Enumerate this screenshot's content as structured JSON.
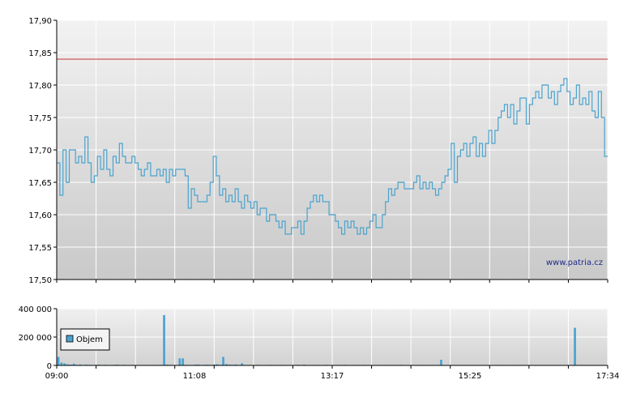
{
  "watermark": "www.patria.cz",
  "colors": {
    "price_line": "#4aa3d0",
    "reference_line": "#cc3333",
    "volume_bar": "#4aa3d0",
    "grid": "#ffffff",
    "plot_bg_top": "#f2f2f2",
    "plot_bg_bottom": "#c9c9c9"
  },
  "chart_data": [
    {
      "type": "line",
      "title": "",
      "xlabel": "",
      "ylabel": "",
      "ylim": [
        17.5,
        17.9
      ],
      "y_ticks": [
        "17,50",
        "17,55",
        "17,60",
        "17,65",
        "17,70",
        "17,75",
        "17,80",
        "17,85",
        "17,90"
      ],
      "reference_line": {
        "value": 17.84
      },
      "grid": true,
      "series": [
        {
          "values": [
            17.68,
            17.63,
            17.7,
            17.65,
            17.7,
            17.7,
            17.68,
            17.69,
            17.68,
            17.72,
            17.68,
            17.65,
            17.66,
            17.69,
            17.67,
            17.7,
            17.67,
            17.66,
            17.69,
            17.68,
            17.71,
            17.69,
            17.68,
            17.68,
            17.69,
            17.68,
            17.67,
            17.66,
            17.67,
            17.68,
            17.66,
            17.66,
            17.67,
            17.66,
            17.67,
            17.65,
            17.67,
            17.66,
            17.67,
            17.67,
            17.67,
            17.66,
            17.61,
            17.64,
            17.63,
            17.62,
            17.62,
            17.62,
            17.63,
            17.65,
            17.69,
            17.66,
            17.63,
            17.64,
            17.62,
            17.63,
            17.62,
            17.64,
            17.62,
            17.61,
            17.63,
            17.62,
            17.61,
            17.62,
            17.6,
            17.61,
            17.61,
            17.59,
            17.6,
            17.6,
            17.59,
            17.58,
            17.59,
            17.57,
            17.57,
            17.58,
            17.58,
            17.59,
            17.57,
            17.59,
            17.61,
            17.62,
            17.63,
            17.62,
            17.63,
            17.62,
            17.62,
            17.6,
            17.6,
            17.59,
            17.58,
            17.57,
            17.59,
            17.58,
            17.59,
            17.58,
            17.57,
            17.58,
            17.57,
            17.58,
            17.59,
            17.6,
            17.58,
            17.58,
            17.6,
            17.62,
            17.64,
            17.63,
            17.64,
            17.65,
            17.65,
            17.64,
            17.64,
            17.64,
            17.65,
            17.66,
            17.64,
            17.65,
            17.64,
            17.65,
            17.64,
            17.63,
            17.64,
            17.65,
            17.66,
            17.67,
            17.71,
            17.65,
            17.69,
            17.7,
            17.71,
            17.69,
            17.71,
            17.72,
            17.69,
            17.71,
            17.69,
            17.71,
            17.73,
            17.71,
            17.73,
            17.75,
            17.76,
            17.77,
            17.75,
            17.77,
            17.74,
            17.76,
            17.78,
            17.78,
            17.74,
            17.77,
            17.78,
            17.79,
            17.78,
            17.8,
            17.8,
            17.78,
            17.79,
            17.77,
            17.79,
            17.8,
            17.81,
            17.79,
            17.77,
            17.78,
            17.8,
            17.77,
            17.78,
            17.77,
            17.79,
            17.76,
            17.75,
            17.79,
            17.75,
            17.69,
            17.69
          ]
        }
      ]
    },
    {
      "type": "bar",
      "title": "",
      "xlabel": "",
      "ylabel": "",
      "ylim": [
        0,
        400000
      ],
      "y_ticks": [
        "0",
        "200 000",
        "400 000"
      ],
      "x_ticks": [
        "09:00",
        "11:08",
        "13:17",
        "15:25",
        "17:34"
      ],
      "legend": {
        "position": "left",
        "entries": [
          "Objem"
        ]
      },
      "grid": true,
      "series": [
        {
          "name": "Objem",
          "values": [
            60000,
            20000,
            15000,
            8000,
            5000,
            12000,
            4000,
            6000,
            3000,
            5000,
            4000,
            3000,
            4000,
            5000,
            3000,
            4000,
            3000,
            3000,
            4000,
            5000,
            3000,
            4000,
            3000,
            2000,
            4000,
            3000,
            2000,
            3000,
            2000,
            3000,
            3000,
            2000,
            3000,
            4000,
            355000,
            5000,
            4000,
            3000,
            2000,
            50000,
            50000,
            4000,
            3000,
            2000,
            5000,
            6000,
            3000,
            4000,
            5000,
            3000,
            6000,
            8000,
            4000,
            60000,
            10000,
            5000,
            4000,
            6000,
            3000,
            15000,
            2000,
            3000,
            2000,
            3000,
            4000,
            3000,
            2000,
            3000,
            4000,
            2000,
            3000,
            2000,
            4000,
            3000,
            2000,
            3000,
            2000,
            4000,
            3000,
            5000,
            2000,
            3000,
            2000,
            3000,
            2000,
            3000,
            4000,
            3000,
            2000,
            3000,
            2000,
            3000,
            4000,
            2000,
            3000,
            2000,
            3000,
            2000,
            4000,
            3000,
            2000,
            3000,
            2000,
            3000,
            2000,
            3000,
            2000,
            3000,
            2000,
            3000,
            4000,
            2000,
            3000,
            2000,
            3000,
            2000,
            3000,
            2000,
            3000,
            2000,
            3000,
            2000,
            3000,
            40000,
            3000,
            2000,
            3000,
            2000,
            3000,
            2000,
            3000,
            2000,
            3000,
            2000,
            3000,
            2000,
            3000,
            2000,
            3000,
            2000,
            3000,
            2000,
            3000,
            2000,
            3000,
            2000,
            3000,
            2000,
            3000,
            2000,
            3000,
            2000,
            3000,
            2000,
            3000,
            2000,
            3000,
            2000,
            3000,
            2000,
            3000,
            2000,
            3000,
            2000,
            3000,
            2000,
            265000,
            3000,
            2000,
            3000,
            2000,
            3000,
            2000,
            3000,
            2000,
            3000,
            2000
          ]
        }
      ]
    }
  ]
}
